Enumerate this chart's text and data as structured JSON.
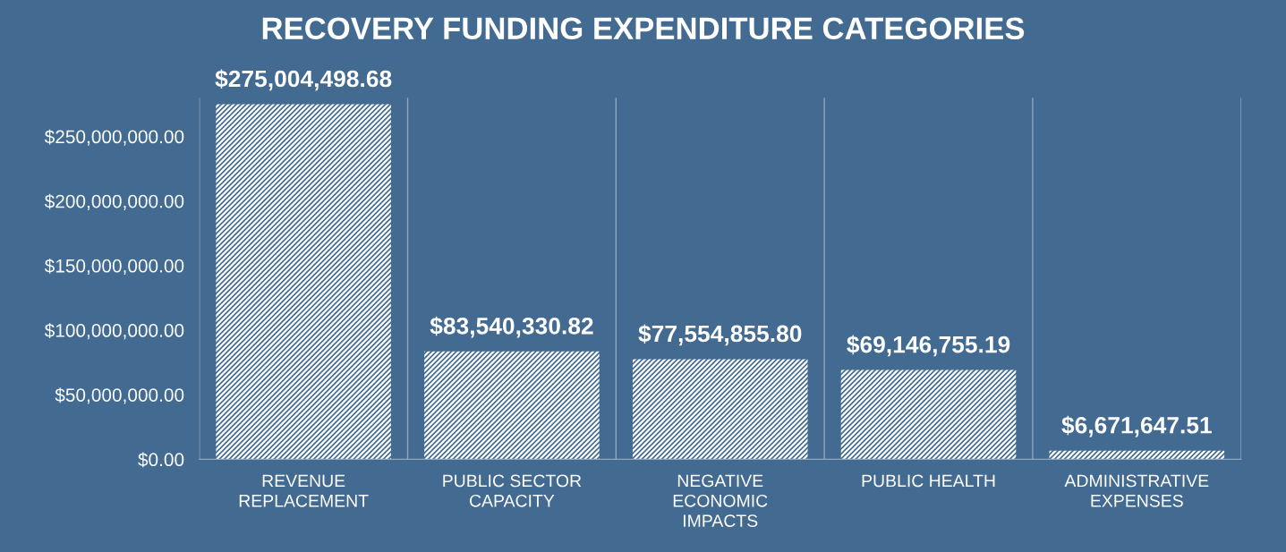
{
  "chart_data": {
    "type": "bar",
    "title": "RECOVERY FUNDING EXPENDITURE CATEGORIES",
    "categories": [
      "REVENUE\nREPLACEMENT",
      "PUBLIC SECTOR\nCAPACITY",
      "NEGATIVE\nECONOMIC\nIMPACTS",
      "PUBLIC HEALTH",
      "ADMINISTRATIVE\nEXPENSES"
    ],
    "values": [
      275004498.68,
      83540330.82,
      77554855.8,
      69146755.19,
      6671647.51
    ],
    "value_labels": [
      "$275,004,498.68",
      "$83,540,330.82",
      "$77,554,855.80",
      "$69,146,755.19",
      "$6,671,647.51"
    ],
    "color": "#ffffff",
    "ylim": [
      0,
      280000000
    ],
    "yticks": [
      {
        "value": 0,
        "label": "$0.00"
      },
      {
        "value": 50000000,
        "label": "$50,000,000.00"
      },
      {
        "value": 100000000,
        "label": "$100,000,000.00"
      },
      {
        "value": 150000000,
        "label": "$150,000,000.00"
      },
      {
        "value": 200000000,
        "label": "$200,000,000.00"
      },
      {
        "value": 250000000,
        "label": "$250,000,000.00"
      }
    ],
    "grid": "x"
  }
}
